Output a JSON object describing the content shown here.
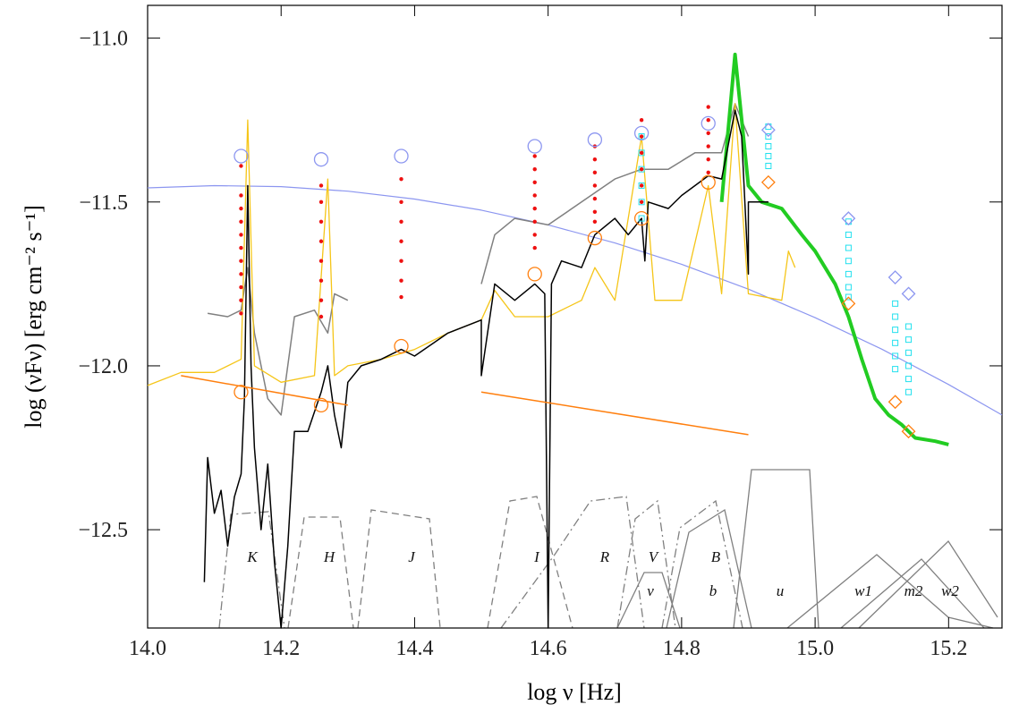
{
  "chart_data": {
    "type": "line",
    "x_label": "log ν [Hz]",
    "y_label": "log (νFν) [erg cm⁻² s⁻¹]",
    "xlim": [
      14.0,
      15.28
    ],
    "ylim": [
      -12.8,
      -10.9
    ],
    "xticks": [
      {
        "value": 14.0,
        "label": "14.0"
      },
      14.2,
      14.4,
      14.6,
      14.8,
      {
        "value": 15.0,
        "label": "15.0"
      },
      15.2
    ],
    "yticks": [
      {
        "value": -11.0,
        "label": "−11.0"
      },
      {
        "value": -11.5,
        "label": "−11.5"
      },
      {
        "value": -12.0,
        "label": "−12.0"
      },
      {
        "value": -12.5,
        "label": "−12.5"
      }
    ],
    "annotations": [
      "K",
      "H",
      "J",
      "I",
      "R",
      "V",
      "B",
      "v",
      "b",
      "u",
      "w1",
      "m2",
      "w2"
    ],
    "series": [
      {
        "mode": "line",
        "color": "#8c96f0",
        "width": 1.2,
        "x": [
          14.0,
          14.1,
          14.2,
          14.3,
          14.4,
          14.5,
          14.6,
          14.7,
          14.8,
          14.9,
          15.0,
          15.1,
          15.2,
          15.28
        ],
        "values": [
          -11.457,
          -11.45,
          -11.453,
          -11.467,
          -11.491,
          -11.525,
          -11.57,
          -11.625,
          -11.69,
          -11.766,
          -11.853,
          -11.949,
          -12.057,
          -12.15
        ]
      },
      {
        "mode": "line",
        "color": "#808080",
        "width": 1.5,
        "x": [
          14.09,
          14.12,
          14.14,
          14.15,
          14.16,
          14.18,
          14.2,
          14.22,
          14.25,
          14.27,
          14.28,
          14.3,
          14.4,
          14.5,
          14.52,
          14.55,
          14.6,
          14.65,
          14.7,
          14.74,
          14.78,
          14.82,
          14.86,
          14.88,
          14.9
        ],
        "values": [
          -11.84,
          -11.85,
          -11.83,
          -11.7,
          -11.9,
          -12.1,
          -12.15,
          -11.85,
          -11.83,
          -11.9,
          -11.78,
          -11.8,
          null,
          -11.75,
          -11.6,
          -11.55,
          -11.57,
          -11.5,
          -11.43,
          -11.4,
          -11.4,
          -11.35,
          -11.35,
          -11.2,
          -11.3
        ]
      },
      {
        "mode": "line",
        "color": "#f5c518",
        "width": 1.3,
        "x": [
          14.0,
          14.05,
          14.1,
          14.14,
          14.15,
          14.16,
          14.2,
          14.25,
          14.27,
          14.28,
          14.3,
          14.35,
          14.4,
          14.45,
          14.5,
          14.52,
          14.55,
          14.58,
          14.6,
          14.65,
          14.67,
          14.7,
          14.74,
          14.76,
          14.8,
          14.84,
          14.86,
          14.88,
          14.9,
          14.95,
          14.96,
          14.97
        ],
        "values": [
          -12.06,
          -12.02,
          -12.02,
          -11.98,
          -11.25,
          -12.0,
          -12.05,
          -12.03,
          -11.43,
          -12.03,
          -12.0,
          -11.98,
          -11.95,
          -11.9,
          -11.86,
          -11.77,
          -11.85,
          -11.85,
          -11.85,
          -11.8,
          -11.7,
          -11.8,
          -11.3,
          -11.8,
          -11.8,
          -11.45,
          -11.78,
          -11.2,
          -11.78,
          -11.8,
          -11.65,
          -11.7
        ]
      },
      {
        "mode": "line",
        "color": "#22cc22",
        "width": 4,
        "x": [
          14.86,
          14.88,
          14.9,
          14.92,
          14.95,
          14.98,
          15.0,
          15.03,
          15.05,
          15.07,
          15.09,
          15.11,
          15.13,
          15.15,
          15.18,
          15.2
        ],
        "values": [
          -11.5,
          -11.05,
          -11.45,
          -11.5,
          -11.52,
          -11.6,
          -11.65,
          -11.75,
          -11.85,
          -11.98,
          -12.1,
          -12.15,
          -12.18,
          -12.22,
          -12.23,
          -12.24
        ]
      },
      {
        "mode": "line",
        "color": "#000000",
        "width": 1.5,
        "x": [
          14.085,
          14.09,
          14.1,
          14.11,
          14.12,
          14.13,
          14.14,
          14.145,
          14.15,
          14.155,
          14.16,
          14.17,
          14.18,
          14.19,
          14.2,
          14.21,
          14.22,
          14.24,
          14.26,
          14.27,
          14.28,
          14.29,
          14.3,
          14.32,
          14.35,
          14.38,
          14.4,
          14.45,
          14.5,
          14.5,
          14.52,
          14.55,
          14.58,
          14.595,
          14.6,
          14.605,
          14.62,
          14.65,
          14.67,
          14.7,
          14.72,
          14.74,
          14.745,
          14.75,
          14.78,
          14.8,
          14.82,
          14.84,
          14.86,
          14.88,
          14.89,
          14.9,
          14.9,
          14.93
        ],
        "values": [
          -12.66,
          -12.28,
          -12.45,
          -12.38,
          -12.55,
          -12.4,
          -12.33,
          -12.1,
          -11.45,
          -12.0,
          -12.25,
          -12.5,
          -12.3,
          -12.6,
          -12.8,
          -12.55,
          -12.2,
          -12.2,
          -12.08,
          -12.0,
          -12.15,
          -12.25,
          -12.05,
          -12.0,
          -11.98,
          -11.95,
          -11.97,
          -11.9,
          -11.86,
          -12.03,
          -11.75,
          -11.8,
          -11.75,
          -11.78,
          -12.8,
          -11.75,
          -11.68,
          -11.7,
          -11.6,
          -11.55,
          -11.6,
          -11.55,
          -11.68,
          -11.5,
          -11.52,
          -11.48,
          -11.45,
          -11.42,
          -11.43,
          -11.22,
          -11.3,
          -11.72,
          -11.5,
          -11.5
        ]
      },
      {
        "mode": "line",
        "color": "#ff7f0e",
        "width": 1.5,
        "x": [
          14.05,
          14.3,
          14.4,
          14.5,
          14.9
        ],
        "values": [
          -12.03,
          -12.12,
          null,
          -12.08,
          -12.21
        ]
      },
      {
        "mode": "markers",
        "marker": "dot",
        "color": "#ee1111",
        "x": [
          14.14,
          14.14,
          14.14,
          14.14,
          14.14,
          14.14,
          14.14,
          14.14,
          14.14,
          14.14,
          14.14,
          14.26,
          14.26,
          14.26,
          14.26,
          14.26,
          14.26,
          14.26,
          14.26,
          14.38,
          14.38,
          14.38,
          14.38,
          14.38,
          14.38,
          14.38,
          14.58,
          14.58,
          14.58,
          14.58,
          14.58,
          14.58,
          14.58,
          14.58,
          14.67,
          14.67,
          14.67,
          14.67,
          14.67,
          14.67,
          14.67,
          14.74,
          14.74,
          14.74,
          14.74,
          14.74,
          14.74,
          14.84,
          14.84,
          14.84,
          14.84,
          14.84,
          14.84
        ],
        "values": [
          -11.39,
          -11.48,
          -11.52,
          -11.56,
          -11.6,
          -11.64,
          -11.68,
          -11.72,
          -11.76,
          -11.8,
          -11.84,
          -11.45,
          -11.5,
          -11.56,
          -11.62,
          -11.68,
          -11.74,
          -11.8,
          -11.85,
          -11.43,
          -11.5,
          -11.56,
          -11.62,
          -11.68,
          -11.74,
          -11.79,
          -11.36,
          -11.4,
          -11.44,
          -11.48,
          -11.52,
          -11.56,
          -11.6,
          -11.64,
          -11.33,
          -11.37,
          -11.41,
          -11.45,
          -11.49,
          -11.53,
          -11.56,
          -11.25,
          -11.3,
          -11.35,
          -11.4,
          -11.45,
          -11.5,
          -11.21,
          -11.25,
          -11.29,
          -11.33,
          -11.37,
          -11.41
        ]
      },
      {
        "mode": "markers",
        "marker": "square",
        "color": "#22e0ee",
        "x": [
          14.74,
          14.74,
          14.74,
          14.74,
          14.74,
          14.74,
          14.93,
          14.93,
          14.93,
          14.93,
          14.93,
          15.05,
          15.05,
          15.05,
          15.05,
          15.05,
          15.05,
          15.05,
          15.12,
          15.12,
          15.12,
          15.12,
          15.12,
          15.12,
          15.14,
          15.14,
          15.14,
          15.14,
          15.14,
          15.14
        ],
        "values": [
          -11.3,
          -11.35,
          -11.4,
          -11.45,
          -11.5,
          -11.55,
          -11.27,
          -11.3,
          -11.33,
          -11.36,
          -11.39,
          -11.56,
          -11.6,
          -11.64,
          -11.68,
          -11.72,
          -11.76,
          -11.79,
          -11.81,
          -11.85,
          -11.89,
          -11.93,
          -11.97,
          -12.01,
          -11.88,
          -11.92,
          -11.96,
          -12.0,
          -12.04,
          -12.08
        ]
      },
      {
        "mode": "markers",
        "marker": "circle",
        "color": "#8c96f0",
        "x": [
          14.14,
          14.26,
          14.38,
          14.58,
          14.67,
          14.74,
          14.84
        ],
        "values": [
          -11.36,
          -11.37,
          -11.36,
          -11.33,
          -11.31,
          -11.29,
          -11.26
        ]
      },
      {
        "mode": "markers",
        "marker": "diamond",
        "color": "#8c96f0",
        "x": [
          14.93,
          15.05,
          15.12,
          15.14
        ],
        "values": [
          -11.28,
          -11.55,
          -11.73,
          -11.78
        ]
      },
      {
        "mode": "markers",
        "marker": "circle",
        "color": "#ff7f0e",
        "x": [
          14.14,
          14.26,
          14.38,
          14.58,
          14.67,
          14.74,
          14.84
        ],
        "values": [
          -12.08,
          -12.12,
          -11.94,
          -11.72,
          -11.61,
          -11.55,
          -11.44
        ]
      },
      {
        "mode": "markers",
        "marker": "diamond",
        "color": "#ff7f0e",
        "x": [
          14.93,
          15.05,
          15.12,
          15.14
        ],
        "values": [
          -11.44,
          -11.81,
          -12.11,
          -12.2
        ]
      }
    ]
  }
}
